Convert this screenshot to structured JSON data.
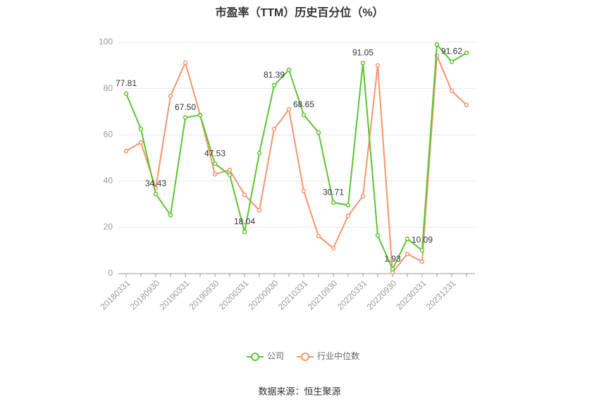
{
  "chart_data": {
    "type": "line",
    "title": "市盈率（TTM）历史百分位（%）",
    "categories": [
      "20180331",
      null,
      "20180930",
      null,
      "20190331",
      null,
      "20190930",
      null,
      "20200331",
      null,
      "20200930",
      null,
      "20210331",
      null,
      "20210930",
      null,
      "20220331",
      null,
      "20220930",
      null,
      "20230331",
      null,
      "20231231",
      null
    ],
    "series": [
      {
        "name": "公司",
        "color": "#5cc433",
        "values": [
          77.81,
          62.5,
          34.43,
          25.3,
          67.5,
          68.5,
          47.53,
          42.7,
          18.04,
          52.1,
          81.39,
          88.1,
          68.65,
          61,
          30.71,
          29.6,
          91.05,
          16.5,
          1.93,
          15,
          10.09,
          99,
          91.62,
          95.4
        ],
        "value_labels": [
          "77.81",
          null,
          "34.43",
          null,
          "67.50",
          null,
          "47.53",
          null,
          "18.04",
          null,
          "81.39",
          null,
          "68.65",
          null,
          "30.71",
          null,
          "91.05",
          null,
          "1.93",
          null,
          "10.09",
          null,
          "91.62",
          null
        ]
      },
      {
        "name": "行业中位数",
        "color": "#f5956a",
        "values": [
          53,
          56.7,
          36.9,
          76.8,
          91.2,
          68.6,
          43,
          44.8,
          34.1,
          27.4,
          62.5,
          71,
          35.7,
          16.2,
          11,
          25,
          33.5,
          90,
          0.5,
          8.5,
          5.2,
          94.2,
          79,
          72.9
        ]
      }
    ],
    "ylim": [
      0,
      100
    ],
    "yticks": [
      0,
      20,
      40,
      60,
      80,
      100
    ],
    "grid": true,
    "source": "数据来源：恒生聚源"
  }
}
